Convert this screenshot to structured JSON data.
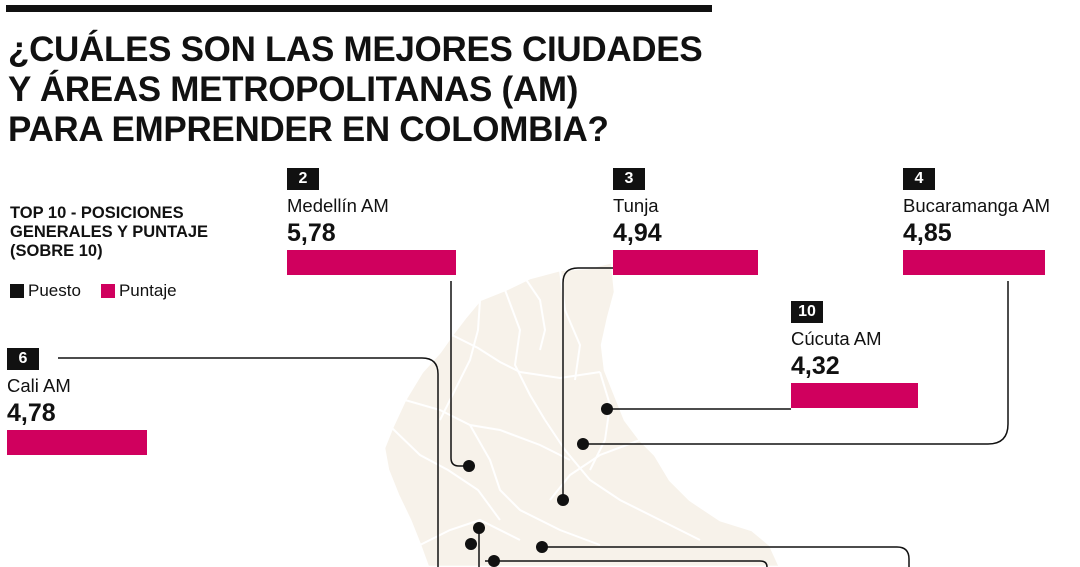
{
  "title_lines": [
    "¿CUÁLES SON LAS MEJORES CIUDADES",
    "Y ÁREAS METROPOLITANAS (AM)",
    "PARA EMPRENDER EN COLOMBIA?"
  ],
  "subtitle": "TOP 10 - POSICIONES GENERALES Y PUNTAJE (SOBRE 10)",
  "legend": {
    "puesto": {
      "label": "Puesto",
      "color": "#111111"
    },
    "puntaje": {
      "label": "Puntaje",
      "color": "#d0005e"
    }
  },
  "colors": {
    "bar": "#d0005e",
    "rank_box": "#111111",
    "map_fill": "#f7f2ea",
    "map_border": "#ffffff"
  },
  "chart_data": {
    "type": "bar",
    "title": "¿CUÁLES SON LAS MEJORES CIUDADES Y ÁREAS METROPOLITANAS (AM) PARA EMPRENDER EN COLOMBIA?",
    "subtitle": "TOP 10 - POSICIONES GENERALES Y PUNTAJE (SOBRE 10)",
    "scale_max": 10,
    "entries": [
      {
        "rank": "2",
        "city": "Medellín AM",
        "score": "5,78",
        "value": 5.78
      },
      {
        "rank": "3",
        "city": "Tunja",
        "score": "4,94",
        "value": 4.94
      },
      {
        "rank": "4",
        "city": "Bucaramanga AM",
        "score": "4,85",
        "value": 4.85
      },
      {
        "rank": "10",
        "city": "Cúcuta AM",
        "score": "4,32",
        "value": 4.32
      },
      {
        "rank": "6",
        "city": "Cali AM",
        "score": "4,78",
        "value": 4.78
      }
    ]
  }
}
